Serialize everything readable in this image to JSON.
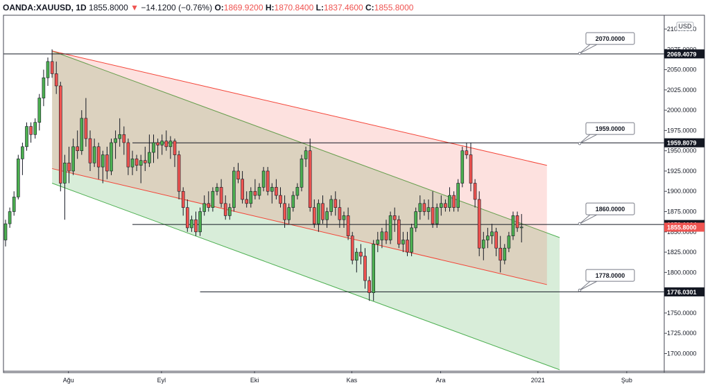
{
  "header": {
    "symbol": "OANDA:XAUUSD, 1D",
    "last": "1855.8000",
    "arrow": "▼",
    "change": "−14.1200 (−0.76%)",
    "o_label": "O:",
    "o_value": "1869.9200",
    "h_label": "H:",
    "h_value": "1870.8400",
    "l_label": "L:",
    "l_value": "1837.4600",
    "c_label": "C:",
    "c_value": "1855.8000"
  },
  "currency_badge": "USD",
  "colors": {
    "up": "#4caf50",
    "down": "#ef5350",
    "wick": "#131722",
    "red_channel": "#f44336",
    "green_channel": "#4caf50",
    "line": "#131722"
  },
  "chart_data": {
    "type": "candlestick",
    "title": "",
    "ylim": [
      1678,
      2110
    ],
    "y_ticks": [
      {
        "value": 2100,
        "label": "2100.0000"
      },
      {
        "value": 2075,
        "label": "2075.0000"
      },
      {
        "value": 2050,
        "label": "2050.0000"
      },
      {
        "value": 2025,
        "label": "2025.0000"
      },
      {
        "value": 2000,
        "label": "2000.0000"
      },
      {
        "value": 1975,
        "label": "1975.0000"
      },
      {
        "value": 1950,
        "label": "1950.0000"
      },
      {
        "value": 1925,
        "label": "1925.0000"
      },
      {
        "value": 1900,
        "label": "1900.0000"
      },
      {
        "value": 1875,
        "label": "1875.0000"
      },
      {
        "value": 1850,
        "label": "1850.0000"
      },
      {
        "value": 1825,
        "label": "1825.0000"
      },
      {
        "value": 1800,
        "label": "1800.0000"
      },
      {
        "value": 1775,
        "label": "1775.0000"
      },
      {
        "value": 1750,
        "label": "1750.0000"
      },
      {
        "value": 1725,
        "label": "1725.0000"
      },
      {
        "value": 1700,
        "label": "1700.0000"
      }
    ],
    "x_ticks": [
      {
        "bar": 7,
        "label": "Ağu"
      },
      {
        "bar": 29,
        "label": "Eyl"
      },
      {
        "bar": 51,
        "label": "Eki"
      },
      {
        "bar": 74,
        "label": "Kas"
      },
      {
        "bar": 95,
        "label": "Ara"
      },
      {
        "bar": 118,
        "label": "2021"
      },
      {
        "bar": 139,
        "label": "Şub"
      }
    ],
    "candles": [
      [
        1840,
        1865,
        1832,
        1860
      ],
      [
        1860,
        1880,
        1855,
        1875
      ],
      [
        1875,
        1900,
        1870,
        1893
      ],
      [
        1893,
        1945,
        1890,
        1940
      ],
      [
        1940,
        1960,
        1920,
        1955
      ],
      [
        1955,
        1985,
        1950,
        1980
      ],
      [
        1980,
        1985,
        1960,
        1970
      ],
      [
        1970,
        1990,
        1965,
        1985
      ],
      [
        1985,
        2020,
        1975,
        2015
      ],
      [
        2015,
        2050,
        2005,
        2040
      ],
      [
        2040,
        2065,
        2030,
        2060
      ],
      [
        2060,
        2075,
        2040,
        2045
      ],
      [
        2045,
        2060,
        2020,
        2030
      ],
      [
        2030,
        2035,
        1900,
        1910
      ],
      [
        1910,
        1945,
        1865,
        1935
      ],
      [
        1935,
        1955,
        1910,
        1925
      ],
      [
        1925,
        1965,
        1920,
        1955
      ],
      [
        1955,
        1975,
        1940,
        1950
      ],
      [
        1950,
        2000,
        1945,
        1990
      ],
      [
        1990,
        2015,
        1955,
        1965
      ],
      [
        1965,
        1975,
        1925,
        1935
      ],
      [
        1935,
        1965,
        1930,
        1955
      ],
      [
        1955,
        1960,
        1915,
        1930
      ],
      [
        1930,
        1950,
        1910,
        1945
      ],
      [
        1945,
        1955,
        1915,
        1925
      ],
      [
        1925,
        1965,
        1920,
        1960
      ],
      [
        1960,
        1975,
        1940,
        1965
      ],
      [
        1965,
        1990,
        1955,
        1970
      ],
      [
        1970,
        1980,
        1945,
        1960
      ],
      [
        1960,
        1965,
        1920,
        1930
      ],
      [
        1930,
        1950,
        1920,
        1940
      ],
      [
        1940,
        1945,
        1925,
        1932
      ],
      [
        1932,
        1945,
        1910,
        1938
      ],
      [
        1938,
        1955,
        1925,
        1935
      ],
      [
        1935,
        1970,
        1930,
        1948
      ],
      [
        1948,
        1970,
        1935,
        1960
      ],
      [
        1960,
        1965,
        1940,
        1957
      ],
      [
        1957,
        1970,
        1945,
        1962
      ],
      [
        1962,
        1975,
        1950,
        1955
      ],
      [
        1955,
        1968,
        1940,
        1962
      ],
      [
        1962,
        1965,
        1930,
        1945
      ],
      [
        1945,
        1950,
        1890,
        1900
      ],
      [
        1900,
        1905,
        1870,
        1880
      ],
      [
        1880,
        1890,
        1850,
        1855
      ],
      [
        1855,
        1870,
        1850,
        1865
      ],
      [
        1865,
        1875,
        1845,
        1850
      ],
      [
        1850,
        1880,
        1845,
        1875
      ],
      [
        1875,
        1895,
        1870,
        1885
      ],
      [
        1885,
        1900,
        1875,
        1880
      ],
      [
        1880,
        1905,
        1875,
        1900
      ],
      [
        1900,
        1910,
        1895,
        1905
      ],
      [
        1905,
        1915,
        1880,
        1885
      ],
      [
        1885,
        1895,
        1865,
        1870
      ],
      [
        1870,
        1885,
        1865,
        1880
      ],
      [
        1880,
        1930,
        1875,
        1925
      ],
      [
        1925,
        1935,
        1910,
        1915
      ],
      [
        1915,
        1925,
        1885,
        1890
      ],
      [
        1890,
        1900,
        1880,
        1885
      ],
      [
        1885,
        1905,
        1880,
        1900
      ],
      [
        1900,
        1915,
        1890,
        1895
      ],
      [
        1895,
        1910,
        1890,
        1905
      ],
      [
        1905,
        1930,
        1900,
        1925
      ],
      [
        1925,
        1930,
        1895,
        1900
      ],
      [
        1900,
        1910,
        1885,
        1905
      ],
      [
        1905,
        1915,
        1890,
        1895
      ],
      [
        1895,
        1905,
        1880,
        1885
      ],
      [
        1885,
        1895,
        1855,
        1865
      ],
      [
        1865,
        1885,
        1860,
        1880
      ],
      [
        1880,
        1900,
        1875,
        1895
      ],
      [
        1895,
        1910,
        1890,
        1905
      ],
      [
        1905,
        1945,
        1900,
        1940
      ],
      [
        1940,
        1955,
        1930,
        1950
      ],
      [
        1950,
        1965,
        1875,
        1880
      ],
      [
        1880,
        1890,
        1855,
        1860
      ],
      [
        1860,
        1890,
        1850,
        1885
      ],
      [
        1885,
        1895,
        1860,
        1865
      ],
      [
        1865,
        1880,
        1855,
        1875
      ],
      [
        1875,
        1895,
        1870,
        1890
      ],
      [
        1890,
        1900,
        1870,
        1880
      ],
      [
        1880,
        1890,
        1855,
        1865
      ],
      [
        1865,
        1875,
        1855,
        1870
      ],
      [
        1870,
        1880,
        1840,
        1845
      ],
      [
        1845,
        1850,
        1810,
        1815
      ],
      [
        1815,
        1830,
        1800,
        1825
      ],
      [
        1825,
        1835,
        1810,
        1820
      ],
      [
        1820,
        1830,
        1780,
        1790
      ],
      [
        1790,
        1795,
        1765,
        1775
      ],
      [
        1775,
        1840,
        1765,
        1835
      ],
      [
        1835,
        1850,
        1825,
        1840
      ],
      [
        1840,
        1855,
        1830,
        1850
      ],
      [
        1850,
        1865,
        1835,
        1840
      ],
      [
        1840,
        1875,
        1835,
        1870
      ],
      [
        1870,
        1880,
        1850,
        1865
      ],
      [
        1865,
        1870,
        1830,
        1835
      ],
      [
        1835,
        1850,
        1825,
        1840
      ],
      [
        1840,
        1850,
        1820,
        1825
      ],
      [
        1825,
        1860,
        1820,
        1855
      ],
      [
        1855,
        1880,
        1850,
        1875
      ],
      [
        1875,
        1895,
        1865,
        1885
      ],
      [
        1885,
        1890,
        1870,
        1875
      ],
      [
        1875,
        1890,
        1865,
        1880
      ],
      [
        1880,
        1900,
        1855,
        1860
      ],
      [
        1860,
        1885,
        1855,
        1880
      ],
      [
        1880,
        1895,
        1870,
        1885
      ],
      [
        1885,
        1890,
        1875,
        1880
      ],
      [
        1880,
        1905,
        1875,
        1895
      ],
      [
        1895,
        1900,
        1875,
        1880
      ],
      [
        1880,
        1915,
        1875,
        1910
      ],
      [
        1910,
        1955,
        1905,
        1950
      ],
      [
        1950,
        1960,
        1940,
        1945
      ],
      [
        1945,
        1960,
        1900,
        1910
      ],
      [
        1910,
        1915,
        1880,
        1890
      ],
      [
        1890,
        1900,
        1820,
        1830
      ],
      [
        1830,
        1850,
        1815,
        1840
      ],
      [
        1840,
        1855,
        1830,
        1845
      ],
      [
        1845,
        1860,
        1835,
        1850
      ],
      [
        1850,
        1855,
        1820,
        1830
      ],
      [
        1830,
        1845,
        1800,
        1815
      ],
      [
        1815,
        1835,
        1810,
        1830
      ],
      [
        1830,
        1850,
        1825,
        1845
      ],
      [
        1845,
        1875,
        1840,
        1870
      ],
      [
        1870,
        1875,
        1850,
        1855
      ],
      [
        1855,
        1872,
        1837,
        1856
      ]
    ],
    "horizontal_levels": [
      {
        "value": 2069.4079,
        "label": "2069.4079",
        "from_bar": -1
      },
      {
        "value": 1959.8079,
        "label": "1959.8079",
        "from_bar": 30
      },
      {
        "value": 1859.1064,
        "label": "1859.1064",
        "from_bar": 30
      },
      {
        "value": 1776.0301,
        "label": "1776.0301",
        "from_bar": 46
      }
    ],
    "last_price": {
      "value": 1855.8,
      "label": "1855.8000"
    },
    "callouts": [
      {
        "label": "2070.0000",
        "value": 2070
      },
      {
        "label": "1959.0000",
        "value": 1959
      },
      {
        "label": "1860.0000",
        "value": 1860
      },
      {
        "label": "1778.0000",
        "value": 1778
      }
    ],
    "red_channel": {
      "upper": [
        [
          11,
          2073
        ],
        [
          128,
          1932
        ]
      ],
      "lower": [
        [
          11,
          1928
        ],
        [
          128,
          1785
        ]
      ]
    },
    "green_channel": {
      "upper": [
        [
          11,
          2073
        ],
        [
          131,
          1843
        ]
      ],
      "lower": [
        [
          11,
          1910
        ],
        [
          131,
          1680
        ]
      ]
    }
  }
}
